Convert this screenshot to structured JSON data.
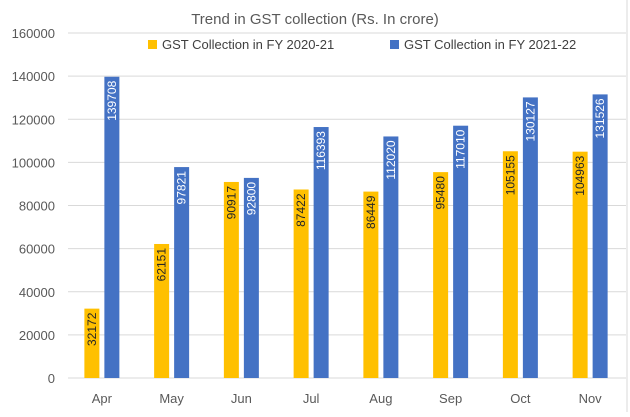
{
  "chart_data": {
    "type": "bar",
    "title": "Trend in GST collection (Rs. In crore)",
    "categories": [
      "Apr",
      "May",
      "Jun",
      "Jul",
      "Aug",
      "Sep",
      "Oct",
      "Nov"
    ],
    "series": [
      {
        "name": "GST Collection in FY 2020-21",
        "color": "#FFC000",
        "values": [
          32172,
          62151,
          90917,
          87422,
          86449,
          95480,
          105155,
          104963
        ]
      },
      {
        "name": "GST Collection in FY 2021-22",
        "color": "#4472C4",
        "values": [
          139708,
          97821,
          92800,
          116393,
          112020,
          117010,
          130127,
          131526
        ]
      }
    ],
    "ylim": [
      0,
      160000
    ],
    "yticks": [
      0,
      20000,
      40000,
      60000,
      80000,
      100000,
      120000,
      140000,
      160000
    ],
    "grid": true,
    "legend": "top",
    "data_labels": "inside-end, rotated vertical"
  }
}
